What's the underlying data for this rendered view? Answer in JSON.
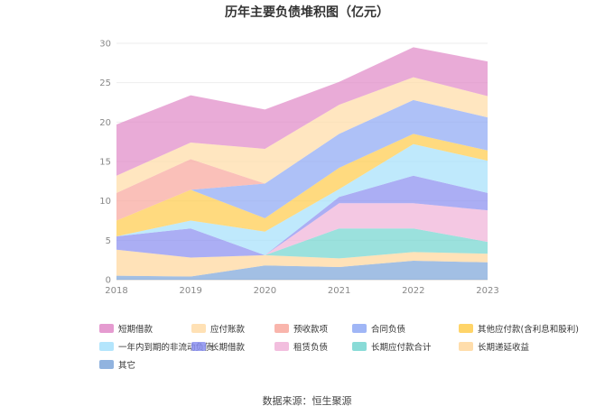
{
  "title": "历年主要负债堆积图（亿元）",
  "source": "数据来源：恒生聚源",
  "chart_data": {
    "type": "area",
    "stacked": true,
    "categories": [
      "2018",
      "2019",
      "2020",
      "2021",
      "2022",
      "2023"
    ],
    "ylim": [
      0,
      30
    ],
    "yticks": [
      "0",
      "5",
      "10",
      "15",
      "20",
      "25",
      "30"
    ],
    "grid": true,
    "legend_position": "bottom",
    "series": [
      {
        "name": "其它",
        "color": "#7ea6d9",
        "values": [
          0.5,
          0.4,
          1.8,
          1.6,
          2.4,
          2.2
        ]
      },
      {
        "name": "长期递延收益",
        "color": "#ffd79c",
        "values": [
          3.3,
          2.4,
          1.3,
          1.1,
          1.1,
          1.1
        ]
      },
      {
        "name": "长期应付款合计",
        "color": "#74d5d0",
        "values": [
          0.0,
          0.0,
          0.0,
          3.8,
          3.0,
          1.5
        ]
      },
      {
        "name": "租赁负债",
        "color": "#f0b3d8",
        "values": [
          0.0,
          0.0,
          0.0,
          3.2,
          3.2,
          4.0
        ]
      },
      {
        "name": "长期借款",
        "color": "#8a8ff0",
        "values": [
          1.7,
          3.7,
          0.0,
          0.8,
          3.5,
          2.2
        ]
      },
      {
        "name": "一年内到期的非流动负债",
        "color": "#a6e0fb",
        "values": [
          0.0,
          1.0,
          3.0,
          1.0,
          4.0,
          4.1
        ]
      },
      {
        "name": "其他应付款(含利息和股利)",
        "color": "#ffcc4d",
        "values": [
          2.0,
          3.9,
          1.7,
          2.7,
          1.3,
          1.3
        ]
      },
      {
        "name": "合同负债",
        "color": "#8fa9f4",
        "values": [
          0.0,
          0.0,
          4.4,
          4.3,
          4.3,
          4.2
        ]
      },
      {
        "name": "预收款项",
        "color": "#f8a89e",
        "values": [
          3.5,
          3.9,
          0.0,
          0.0,
          0.0,
          0.0
        ]
      },
      {
        "name": "应付账款",
        "color": "#ffdca8",
        "values": [
          2.2,
          2.1,
          4.4,
          3.7,
          2.9,
          2.7
        ]
      },
      {
        "name": "短期借款",
        "color": "#e08ac8",
        "values": [
          6.5,
          6.0,
          5.0,
          2.9,
          3.8,
          4.4
        ]
      }
    ]
  },
  "legend_order": [
    "短期借款",
    "应付账款",
    "预收款项",
    "合同负债",
    "其他应付款(含利息和股利)",
    "一年内到期的非流动负债",
    "长期借款",
    "租赁负债",
    "长期应付款合计",
    "长期递延收益",
    "其它"
  ]
}
